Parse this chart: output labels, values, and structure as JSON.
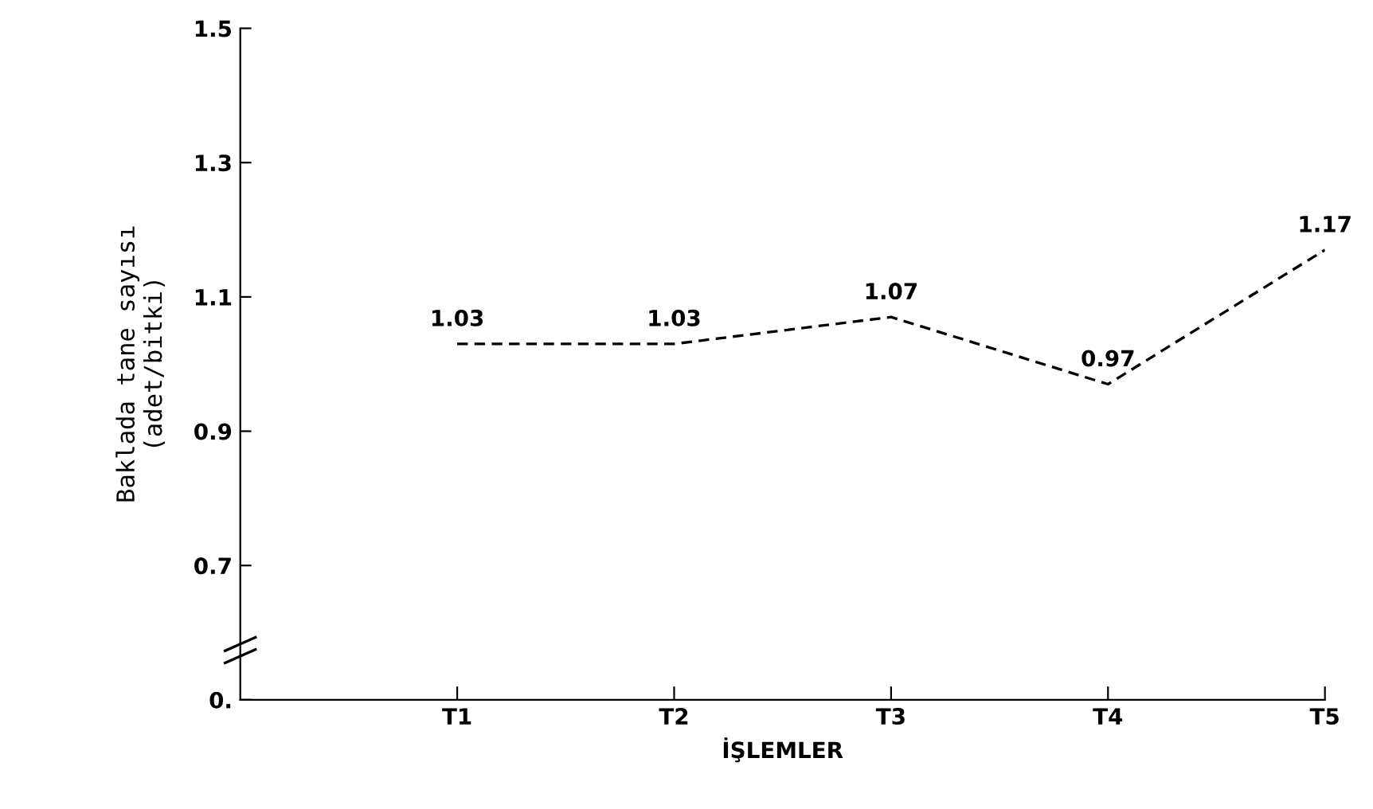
{
  "chart_data": {
    "type": "line",
    "xlabel": "İŞLEMLER",
    "ylabel": "Baklada tane sayısı\n(adet/bitki)",
    "categories": [
      "T1",
      "T2",
      "T3",
      "T4",
      "T5"
    ],
    "series": [
      {
        "color": "#000000",
        "values": [
          1.03,
          1.03,
          1.07,
          0.97,
          1.17
        ]
      }
    ],
    "ylim": [
      0.5,
      1.5
    ],
    "yticks": [
      {
        "value": 0.5,
        "label": "0."
      },
      0.7,
      0.9,
      1.1,
      1.3,
      1.5
    ],
    "data_labels": true,
    "line_style": "dashed",
    "marker": "none",
    "grid": false,
    "legend": false
  }
}
